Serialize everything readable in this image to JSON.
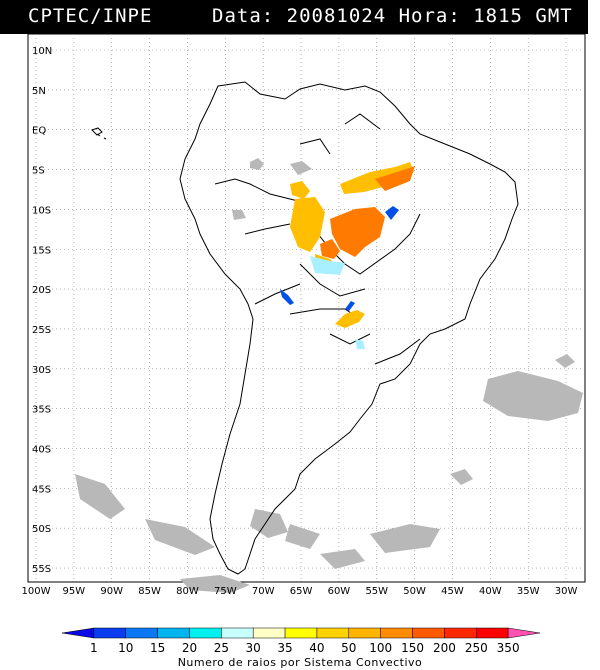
{
  "header": {
    "source": "CPTEC/INPE",
    "datetime": "Data: 20081024 Hora: 1815 GMT"
  },
  "map": {
    "lat_labels": [
      "10N",
      "5N",
      "EQ",
      "5S",
      "10S",
      "15S",
      "20S",
      "25S",
      "30S",
      "35S",
      "40S",
      "45S",
      "50S",
      "55S"
    ],
    "lon_labels": [
      "100W",
      "95W",
      "90W",
      "85W",
      "80W",
      "75W",
      "70W",
      "65W",
      "60W",
      "55W",
      "50W",
      "45W",
      "40W",
      "35W",
      "30W"
    ],
    "grid": true,
    "colors": {
      "land_outline": "#000000",
      "cloud_gray": "#b8b8b8",
      "storm_yellow": "#ffbe00",
      "storm_orange": "#ff7a00",
      "storm_blue": "#0050e6",
      "storm_cyan": "#a8f0ff"
    }
  },
  "colorbar": {
    "labels": [
      "1",
      "10",
      "15",
      "20",
      "25",
      "30",
      "35",
      "40",
      "50",
      "100",
      "150",
      "200",
      "250",
      "350"
    ],
    "colors": [
      "#0a0ae6",
      "#0a3cf0",
      "#0a78f5",
      "#00b4f0",
      "#00f0f0",
      "#c8ffff",
      "#ffffc8",
      "#ffff00",
      "#ffd200",
      "#ffb400",
      "#ff8c00",
      "#ff5a00",
      "#ff2800",
      "#ff0000",
      "#ff50b4"
    ],
    "title": "Numero de raios por Sistema Convectivo"
  }
}
